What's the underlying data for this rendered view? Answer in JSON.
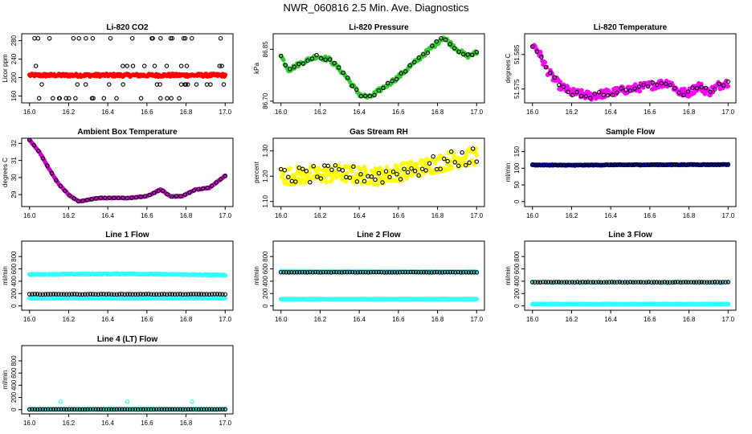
{
  "page": {
    "title": "NWR_060816  2.5 Min. Ave. Diagnostics"
  },
  "chart_data": [
    {
      "id": "co2",
      "title": "Li-820 CO2",
      "type": "scatter",
      "ylabel": "Licor ppm",
      "xlim": [
        16.0,
        17.0
      ],
      "ylim": [
        145,
        295
      ],
      "yticks": [
        160,
        200,
        240,
        280
      ],
      "xticks": [
        16.0,
        16.2,
        16.4,
        16.6,
        16.8,
        17.0
      ],
      "series": [
        {
          "color": "#ff0000",
          "filled": true,
          "mode": "noise",
          "base": 205,
          "amp": 3,
          "n": 240
        },
        {
          "color": "#000000",
          "filled": false,
          "mode": "levels",
          "levels": [
            155,
            185,
            225,
            285
          ],
          "n": 60
        }
      ]
    },
    {
      "id": "pressure",
      "title": "Li-820 Pressure",
      "type": "scatter",
      "ylabel": "kPa",
      "xlim": [
        16.0,
        17.0
      ],
      "ylim": [
        86.695,
        86.895
      ],
      "yticks": [
        86.7,
        86.85
      ],
      "xticks": [
        16.0,
        16.2,
        16.4,
        16.6,
        16.8,
        17.0
      ],
      "series": [
        {
          "color": "#33cc33",
          "filled": true,
          "mode": "curve",
          "n": 160,
          "noise": 0.006,
          "knots": [
            [
              16.0,
              86.83
            ],
            [
              16.04,
              86.79
            ],
            [
              16.1,
              86.81
            ],
            [
              16.18,
              86.83
            ],
            [
              16.25,
              86.82
            ],
            [
              16.32,
              86.78
            ],
            [
              16.4,
              86.72
            ],
            [
              16.45,
              86.71
            ],
            [
              16.5,
              86.73
            ],
            [
              16.6,
              86.77
            ],
            [
              16.7,
              86.82
            ],
            [
              16.78,
              86.86
            ],
            [
              16.83,
              86.885
            ],
            [
              16.9,
              86.85
            ],
            [
              16.95,
              86.83
            ],
            [
              17.0,
              86.84
            ]
          ]
        },
        {
          "color": "#000000",
          "filled": false,
          "mode": "curve",
          "n": 45,
          "noise": 0.005,
          "knots": [
            [
              16.0,
              86.83
            ],
            [
              16.04,
              86.79
            ],
            [
              16.1,
              86.81
            ],
            [
              16.18,
              86.83
            ],
            [
              16.25,
              86.82
            ],
            [
              16.32,
              86.78
            ],
            [
              16.4,
              86.72
            ],
            [
              16.45,
              86.71
            ],
            [
              16.5,
              86.73
            ],
            [
              16.6,
              86.77
            ],
            [
              16.7,
              86.82
            ],
            [
              16.78,
              86.86
            ],
            [
              16.83,
              86.885
            ],
            [
              16.9,
              86.85
            ],
            [
              16.95,
              86.83
            ],
            [
              17.0,
              86.84
            ]
          ]
        }
      ]
    },
    {
      "id": "licor-temp",
      "title": "Li-820 Temperature",
      "type": "scatter",
      "ylabel": "degrees C",
      "xlim": [
        16.0,
        17.0
      ],
      "ylim": [
        51.571,
        51.591
      ],
      "yticks": [
        51.575,
        51.585
      ],
      "xticks": [
        16.0,
        16.2,
        16.4,
        16.6,
        16.8,
        17.0
      ],
      "series": [
        {
          "color": "#ff00ff",
          "filled": true,
          "mode": "curve",
          "n": 220,
          "noise": 0.0012,
          "knots": [
            [
              16.0,
              51.588
            ],
            [
              16.03,
              51.586
            ],
            [
              16.08,
              51.58
            ],
            [
              16.14,
              51.576
            ],
            [
              16.2,
              51.574
            ],
            [
              16.3,
              51.573
            ],
            [
              16.4,
              51.574
            ],
            [
              16.5,
              51.575
            ],
            [
              16.6,
              51.576
            ],
            [
              16.7,
              51.577
            ],
            [
              16.75,
              51.574
            ],
            [
              16.8,
              51.574
            ],
            [
              16.85,
              51.576
            ],
            [
              16.9,
              51.574
            ],
            [
              16.95,
              51.576
            ],
            [
              17.0,
              51.577
            ]
          ]
        },
        {
          "color": "#000000",
          "filled": false,
          "mode": "curve",
          "n": 45,
          "noise": 0.0008,
          "knots": [
            [
              16.0,
              51.588
            ],
            [
              16.03,
              51.586
            ],
            [
              16.08,
              51.58
            ],
            [
              16.14,
              51.576
            ],
            [
              16.2,
              51.574
            ],
            [
              16.3,
              51.573
            ],
            [
              16.4,
              51.574
            ],
            [
              16.5,
              51.575
            ],
            [
              16.6,
              51.576
            ],
            [
              16.7,
              51.577
            ],
            [
              16.75,
              51.574
            ],
            [
              16.8,
              51.574
            ],
            [
              16.85,
              51.576
            ],
            [
              16.9,
              51.574
            ],
            [
              16.95,
              51.576
            ],
            [
              17.0,
              51.577
            ]
          ]
        }
      ]
    },
    {
      "id": "box-temp",
      "title": "Ambient Box Temperature",
      "type": "scatter",
      "ylabel": "degrees C",
      "xlim": [
        16.0,
        17.0
      ],
      "ylim": [
        28.3,
        32.3
      ],
      "yticks": [
        29,
        30,
        31,
        32
      ],
      "xticks": [
        16.0,
        16.2,
        16.4,
        16.6,
        16.8,
        17.0
      ],
      "series": [
        {
          "color": "#cc00cc",
          "filled": true,
          "mode": "curve",
          "n": 160,
          "noise": 0.02,
          "knots": [
            [
              16.0,
              32.2
            ],
            [
              16.05,
              31.5
            ],
            [
              16.1,
              30.5
            ],
            [
              16.15,
              29.6
            ],
            [
              16.2,
              29.0
            ],
            [
              16.25,
              28.6
            ],
            [
              16.3,
              28.7
            ],
            [
              16.35,
              28.8
            ],
            [
              16.4,
              28.8
            ],
            [
              16.5,
              28.8
            ],
            [
              16.6,
              28.9
            ],
            [
              16.67,
              29.3
            ],
            [
              16.72,
              28.9
            ],
            [
              16.78,
              28.9
            ],
            [
              16.85,
              29.3
            ],
            [
              16.92,
              29.4
            ],
            [
              17.0,
              30.1
            ]
          ]
        },
        {
          "color": "#000000",
          "filled": false,
          "mode": "curve",
          "n": 45,
          "noise": 0.02,
          "knots": [
            [
              16.0,
              32.2
            ],
            [
              16.05,
              31.5
            ],
            [
              16.1,
              30.5
            ],
            [
              16.15,
              29.6
            ],
            [
              16.2,
              29.0
            ],
            [
              16.25,
              28.6
            ],
            [
              16.3,
              28.7
            ],
            [
              16.35,
              28.8
            ],
            [
              16.4,
              28.8
            ],
            [
              16.5,
              28.8
            ],
            [
              16.6,
              28.9
            ],
            [
              16.67,
              29.3
            ],
            [
              16.72,
              28.9
            ],
            [
              16.78,
              28.9
            ],
            [
              16.85,
              29.3
            ],
            [
              16.92,
              29.4
            ],
            [
              17.0,
              30.1
            ]
          ]
        }
      ]
    },
    {
      "id": "rh",
      "title": "Gas Stream RH",
      "type": "scatter",
      "ylabel": "percent",
      "xlim": [
        16.0,
        17.0
      ],
      "ylim": [
        1.08,
        1.35
      ],
      "yticks": [
        1.1,
        1.2,
        1.3
      ],
      "xticks": [
        16.0,
        16.2,
        16.4,
        16.6,
        16.8,
        17.0
      ],
      "series": [
        {
          "color": "#ffff00",
          "filled": true,
          "mode": "curve",
          "n": 260,
          "noise": 0.035,
          "knots": [
            [
              16.0,
              1.2
            ],
            [
              16.3,
              1.21
            ],
            [
              16.5,
              1.2
            ],
            [
              16.7,
              1.23
            ],
            [
              16.85,
              1.26
            ],
            [
              17.0,
              1.28
            ]
          ]
        },
        {
          "color": "#000000",
          "filled": false,
          "mode": "curve",
          "n": 55,
          "noise": 0.035,
          "knots": [
            [
              16.0,
              1.2
            ],
            [
              16.3,
              1.21
            ],
            [
              16.5,
              1.2
            ],
            [
              16.7,
              1.23
            ],
            [
              16.85,
              1.26
            ],
            [
              17.0,
              1.28
            ]
          ]
        }
      ]
    },
    {
      "id": "sample-flow",
      "title": "Sample Flow",
      "type": "scatter",
      "ylabel": "ml/min",
      "xlim": [
        16.0,
        17.0
      ],
      "ylim": [
        -15,
        190
      ],
      "yticks": [
        0,
        50,
        100,
        150
      ],
      "xticks": [
        16.0,
        16.2,
        16.4,
        16.6,
        16.8,
        17.0
      ],
      "series": [
        {
          "color": "#0000cc",
          "filled": true,
          "mode": "curve",
          "n": 220,
          "noise": 1,
          "knots": [
            [
              16.0,
              110
            ],
            [
              16.2,
              109
            ],
            [
              16.4,
              110
            ],
            [
              17.0,
              111
            ]
          ]
        },
        {
          "color": "#000000",
          "filled": false,
          "mode": "curve",
          "n": 70,
          "noise": 1,
          "knots": [
            [
              16.0,
              110
            ],
            [
              16.2,
              109
            ],
            [
              16.4,
              110
            ],
            [
              17.0,
              111
            ]
          ]
        }
      ]
    },
    {
      "id": "line1-flow",
      "title": "Line 1 Flow",
      "type": "scatter",
      "ylabel": "ml/min",
      "xlim": [
        16.0,
        17.0
      ],
      "ylim": [
        -70,
        1050
      ],
      "yticks": [
        0,
        200,
        400,
        600,
        800
      ],
      "xticks": [
        16.0,
        16.2,
        16.4,
        16.6,
        16.8,
        17.0
      ],
      "series": [
        {
          "color": "#33ffff",
          "filled": true,
          "mode": "curve",
          "n": 240,
          "noise": 6,
          "knots": [
            [
              16.0,
              510
            ],
            [
              16.5,
              520
            ],
            [
              17.0,
              500
            ]
          ]
        },
        {
          "color": "#33ffff",
          "filled": true,
          "mode": "curve",
          "n": 240,
          "noise": 3,
          "knots": [
            [
              16.0,
              125
            ],
            [
              17.0,
              125
            ]
          ]
        },
        {
          "color": "#000000",
          "filled": false,
          "mode": "curve",
          "n": 75,
          "noise": 2,
          "knots": [
            [
              16.0,
              190
            ],
            [
              17.0,
              190
            ]
          ]
        }
      ]
    },
    {
      "id": "line2-flow",
      "title": "Line 2 Flow",
      "type": "scatter",
      "ylabel": "ml/min",
      "xlim": [
        16.0,
        17.0
      ],
      "ylim": [
        -70,
        1050
      ],
      "yticks": [
        0,
        200,
        400,
        600,
        800
      ],
      "xticks": [
        16.0,
        16.2,
        16.4,
        16.6,
        16.8,
        17.0
      ],
      "series": [
        {
          "color": "#33ffff",
          "filled": true,
          "mode": "curve",
          "n": 240,
          "noise": 5,
          "knots": [
            [
              16.0,
              560
            ],
            [
              17.0,
              555
            ]
          ]
        },
        {
          "color": "#33ffff",
          "filled": true,
          "mode": "curve",
          "n": 240,
          "noise": 3,
          "knots": [
            [
              16.0,
              110
            ],
            [
              17.0,
              110
            ]
          ]
        },
        {
          "color": "#000000",
          "filled": false,
          "mode": "curve",
          "n": 75,
          "noise": 2,
          "knots": [
            [
              16.0,
              545
            ],
            [
              17.0,
              545
            ]
          ]
        }
      ]
    },
    {
      "id": "line3-flow",
      "title": "Line 3 Flow",
      "type": "scatter",
      "ylabel": "ml/min",
      "xlim": [
        16.0,
        17.0
      ],
      "ylim": [
        -70,
        1050
      ],
      "yticks": [
        0,
        200,
        400,
        600,
        800
      ],
      "xticks": [
        16.0,
        16.2,
        16.4,
        16.6,
        16.8,
        17.0
      ],
      "series": [
        {
          "color": "#33ffff",
          "filled": true,
          "mode": "curve",
          "n": 240,
          "noise": 3,
          "knots": [
            [
              16.0,
              30
            ],
            [
              17.0,
              30
            ]
          ]
        },
        {
          "color": "#33ffff",
          "filled": true,
          "mode": "curve",
          "n": 30,
          "noise": 8,
          "knots": [
            [
              16.0,
              380
            ],
            [
              17.0,
              380
            ]
          ]
        },
        {
          "color": "#000000",
          "filled": false,
          "mode": "curve",
          "n": 75,
          "noise": 2,
          "knots": [
            [
              16.0,
              385
            ],
            [
              17.0,
              385
            ]
          ]
        }
      ]
    },
    {
      "id": "line4-flow",
      "title": "Line 4 (LT) Flow",
      "type": "scatter",
      "ylabel": "ml/min",
      "xlim": [
        16.0,
        17.0
      ],
      "ylim": [
        -70,
        1050
      ],
      "yticks": [
        0,
        200,
        400,
        600,
        800
      ],
      "xticks": [
        16.0,
        16.2,
        16.4,
        16.6,
        16.8,
        17.0
      ],
      "series": [
        {
          "color": "#33ffff",
          "filled": true,
          "mode": "curve",
          "n": 240,
          "noise": 2,
          "knots": [
            [
              16.0,
              5
            ],
            [
              17.0,
              5
            ]
          ]
        },
        {
          "color": "#000000",
          "filled": false,
          "mode": "curve",
          "n": 75,
          "noise": 1,
          "knots": [
            [
              16.0,
              5
            ],
            [
              17.0,
              5
            ]
          ]
        },
        {
          "color": "#33ffff",
          "filled": false,
          "mode": "points",
          "points": [
            [
              16.16,
              130
            ],
            [
              16.5,
              130
            ],
            [
              16.83,
              130
            ]
          ]
        }
      ]
    }
  ]
}
